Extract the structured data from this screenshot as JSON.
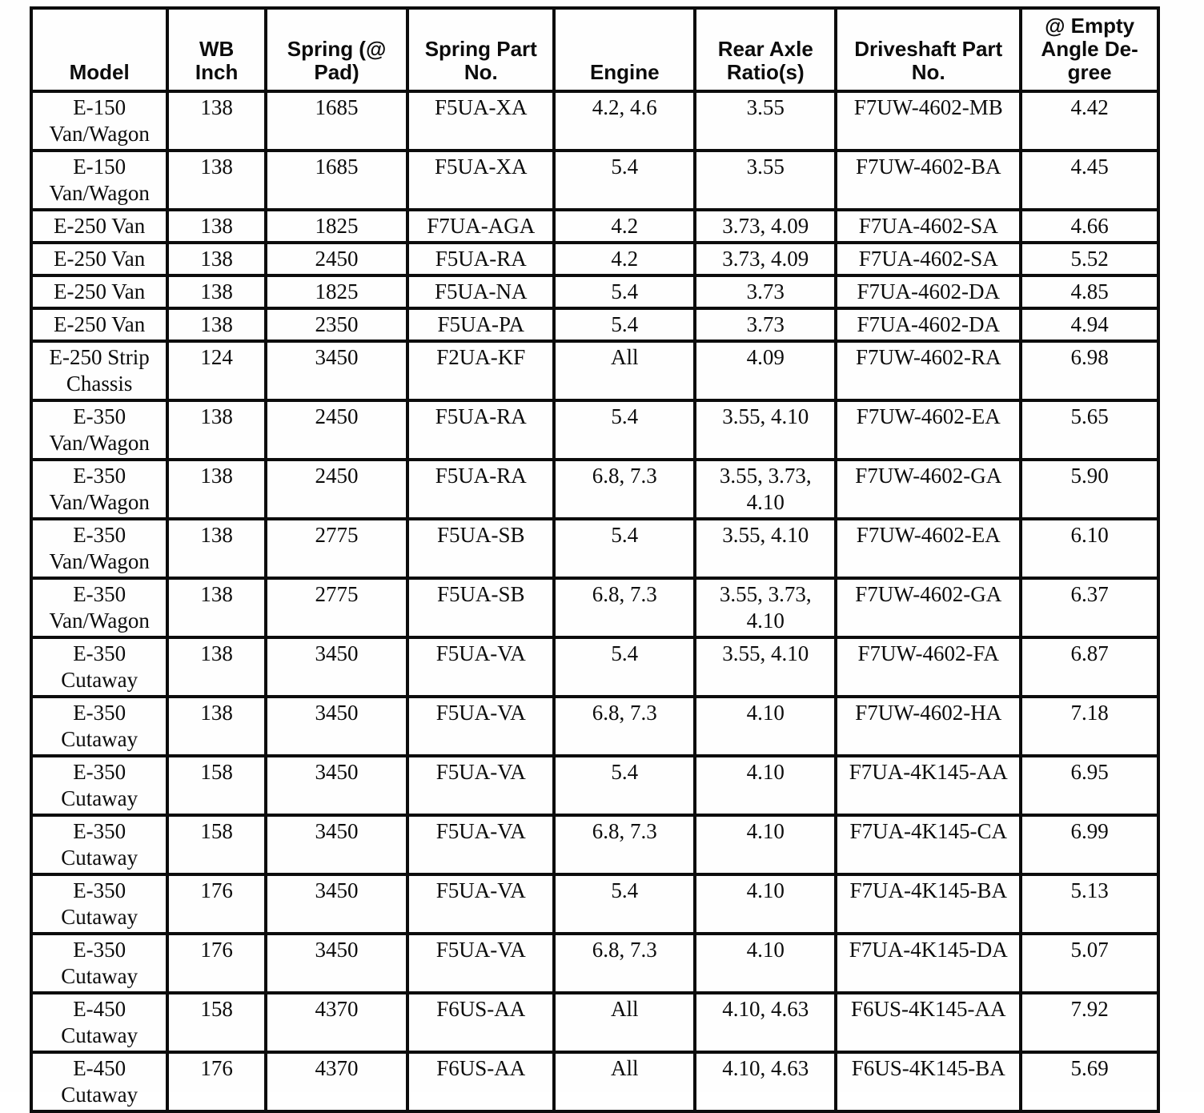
{
  "page": {
    "background": "#fefefe",
    "ink": "#0c0c0c"
  },
  "table": {
    "title_semantic": "e-series-drivetrain-spec-table",
    "headers": [
      {
        "key": "model",
        "label": "Model"
      },
      {
        "key": "wb-inch",
        "label": "WB\nInch"
      },
      {
        "key": "spring-at-pad",
        "label": "Spring (@\nPad)"
      },
      {
        "key": "spring-part-no",
        "label": "Spring Part\nNo."
      },
      {
        "key": "engine",
        "label": "Engine"
      },
      {
        "key": "rear-axle-ratios",
        "label": "Rear Axle\nRatio(s)"
      },
      {
        "key": "driveshaft-part-no",
        "label": "Driveshaft Part\nNo."
      },
      {
        "key": "empty-angle-degree",
        "label": "@ Empty\nAngle De-\ngree"
      }
    ],
    "col_widths_pct": [
      12.1,
      8.7,
      12.6,
      13.0,
      12.5,
      12.5,
      16.4,
      12.2
    ],
    "rows": [
      [
        "E-150\nVan/Wagon",
        "138",
        "1685",
        "F5UA-XA",
        "4.2, 4.6",
        "3.55",
        "F7UW-4602-MB",
        "4.42"
      ],
      [
        "E-150\nVan/Wagon",
        "138",
        "1685",
        "F5UA-XA",
        "5.4",
        "3.55",
        "F7UW-4602-BA",
        "4.45"
      ],
      [
        "E-250 Van",
        "138",
        "1825",
        "F7UA-AGA",
        "4.2",
        "3.73, 4.09",
        "F7UA-4602-SA",
        "4.66"
      ],
      [
        "E-250 Van",
        "138",
        "2450",
        "F5UA-RA",
        "4.2",
        "3.73, 4.09",
        "F7UA-4602-SA",
        "5.52"
      ],
      [
        "E-250 Van",
        "138",
        "1825",
        "F5UA-NA",
        "5.4",
        "3.73",
        "F7UA-4602-DA",
        "4.85"
      ],
      [
        "E-250 Van",
        "138",
        "2350",
        "F5UA-PA",
        "5.4",
        "3.73",
        "F7UA-4602-DA",
        "4.94"
      ],
      [
        "E-250 Strip\nChassis",
        "124",
        "3450",
        "F2UA-KF",
        "All",
        "4.09",
        "F7UW-4602-RA",
        "6.98"
      ],
      [
        "E-350\nVan/Wagon",
        "138",
        "2450",
        "F5UA-RA",
        "5.4",
        "3.55, 4.10",
        "F7UW-4602-EA",
        "5.65"
      ],
      [
        "E-350\nVan/Wagon",
        "138",
        "2450",
        "F5UA-RA",
        "6.8, 7.3",
        "3.55, 3.73,\n4.10",
        "F7UW-4602-GA",
        "5.90"
      ],
      [
        "E-350\nVan/Wagon",
        "138",
        "2775",
        "F5UA-SB",
        "5.4",
        "3.55, 4.10",
        "F7UW-4602-EA",
        "6.10"
      ],
      [
        "E-350\nVan/Wagon",
        "138",
        "2775",
        "F5UA-SB",
        "6.8, 7.3",
        "3.55, 3.73,\n4.10",
        "F7UW-4602-GA",
        "6.37"
      ],
      [
        "E-350\nCutaway",
        "138",
        "3450",
        "F5UA-VA",
        "5.4",
        "3.55, 4.10",
        "F7UW-4602-FA",
        "6.87"
      ],
      [
        "E-350\nCutaway",
        "138",
        "3450",
        "F5UA-VA",
        "6.8, 7.3",
        "4.10",
        "F7UW-4602-HA",
        "7.18"
      ],
      [
        "E-350\nCutaway",
        "158",
        "3450",
        "F5UA-VA",
        "5.4",
        "4.10",
        "F7UA-4K145-AA",
        "6.95"
      ],
      [
        "E-350\nCutaway",
        "158",
        "3450",
        "F5UA-VA",
        "6.8, 7.3",
        "4.10",
        "F7UA-4K145-CA",
        "6.99"
      ],
      [
        "E-350\nCutaway",
        "176",
        "3450",
        "F5UA-VA",
        "5.4",
        "4.10",
        "F7UA-4K145-BA",
        "5.13"
      ],
      [
        "E-350\nCutaway",
        "176",
        "3450",
        "F5UA-VA",
        "6.8, 7.3",
        "4.10",
        "F7UA-4K145-DA",
        "5.07"
      ],
      [
        "E-450\nCutaway",
        "158",
        "4370",
        "F6US-AA",
        "All",
        "4.10, 4.63",
        "F6US-4K145-AA",
        "7.92"
      ],
      [
        "E-450\nCutaway",
        "176",
        "4370",
        "F6US-AA",
        "All",
        "4.10, 4.63",
        "F6US-4K145-BA",
        "5.69"
      ]
    ]
  }
}
